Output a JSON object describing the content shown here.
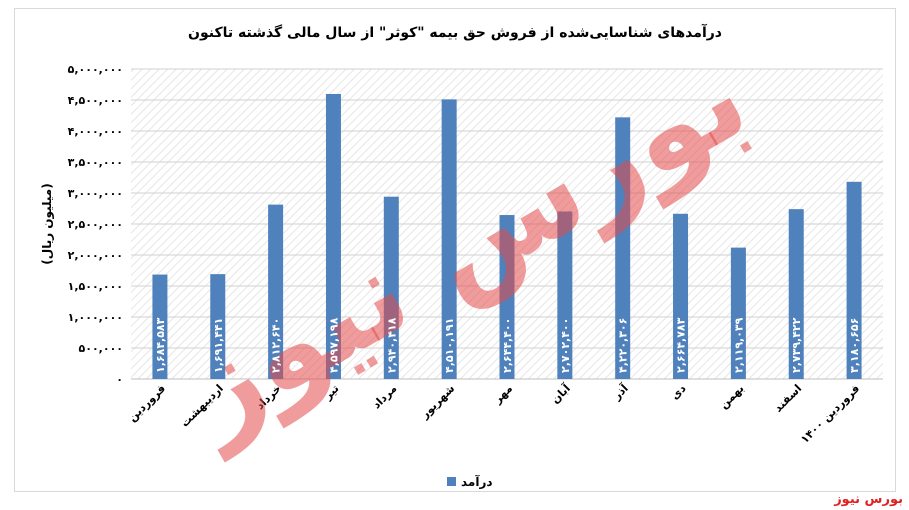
{
  "brand": "بورس نیوز",
  "watermark": "بورس نیوز",
  "chart_data": {
    "type": "bar",
    "title": "درآمدهای شناسایی‌شده از فروش حق بیمه \"کوثر\" از سال مالی گذشته تاکنون",
    "ylabel": "(میلیون ریال)",
    "xlabel": "",
    "ylim": [
      0,
      5000000
    ],
    "yticks": [
      0,
      500000,
      1000000,
      1500000,
      2000000,
      2500000,
      3000000,
      3500000,
      4000000,
      4500000,
      5000000
    ],
    "ytick_labels": [
      "۰",
      "۵۰۰,۰۰۰",
      "۱,۰۰۰,۰۰۰",
      "۱,۵۰۰,۰۰۰",
      "۲,۰۰۰,۰۰۰",
      "۲,۵۰۰,۰۰۰",
      "۳,۰۰۰,۰۰۰",
      "۳,۵۰۰,۰۰۰",
      "۴,۰۰۰,۰۰۰",
      "۴,۵۰۰,۰۰۰",
      "۵,۰۰۰,۰۰۰"
    ],
    "categories": [
      "فروردین",
      "اردیبهشت",
      "خرداد",
      "تیر",
      "مرداد",
      "شهریور",
      "مهر",
      "آبان",
      "آذر",
      "دی",
      "بهمن",
      "اسفند",
      "فروردین ۱۴۰۰"
    ],
    "values": [
      1684583,
      1691441,
      2812640,
      4597198,
      2940418,
      4510191,
      2644400,
      2702400,
      4220306,
      2664783,
      2119039,
      2739422,
      3180656
    ],
    "value_labels": [
      "۱,۶۸۴,۵۸۳",
      "۱,۶۹۱,۴۴۱",
      "۲,۸۱۲,۶۴۰",
      "۴,۵۹۷,۱۹۸",
      "۲,۹۴۰,۴۱۸",
      "۴,۵۱۰,۱۹۱",
      "۲,۶۴۴,۴۰۰",
      "۲,۷۰۲,۴۰۰",
      "۴,۲۲۰,۳۰۶",
      "۲,۶۶۴,۷۸۳",
      "۲,۱۱۹,۰۳۹",
      "۲,۷۳۹,۴۲۲",
      "۳,۱۸۰,۶۵۶"
    ],
    "series": [
      {
        "name": "درآمد"
      }
    ],
    "legend_position": "bottom",
    "grid": true,
    "bar_color": "#4f81bd",
    "title_color": "#000000"
  }
}
